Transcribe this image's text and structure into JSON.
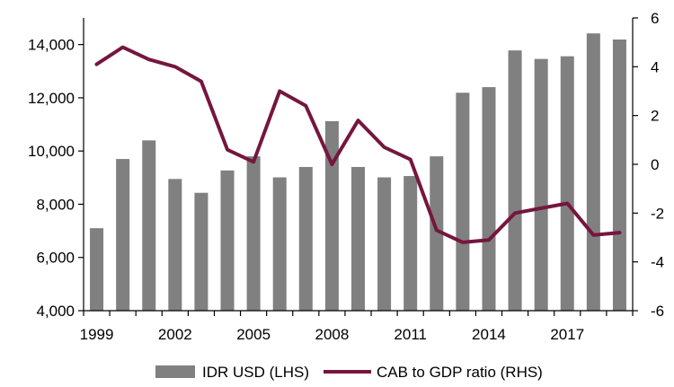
{
  "chart_data": {
    "type": "bar+line",
    "title": "",
    "x": [
      1999,
      2000,
      2001,
      2002,
      2003,
      2004,
      2005,
      2006,
      2007,
      2008,
      2009,
      2010,
      2011,
      2012,
      2013,
      2014,
      2015,
      2016,
      2017,
      2018,
      2019
    ],
    "x_tick_labels": [
      "1999",
      "2002",
      "2005",
      "2008",
      "2011",
      "2014",
      "2017"
    ],
    "y_left": {
      "ylim": [
        4000,
        15000
      ],
      "ticks": [
        "4,000",
        "6,000",
        "8,000",
        "10,000",
        "12,000",
        "14,000"
      ]
    },
    "y_right": {
      "ylim": [
        -6,
        6
      ],
      "ticks": [
        "-6",
        "-4",
        "-2",
        "0",
        "2",
        "4",
        "6"
      ]
    },
    "series": [
      {
        "name": "IDR USD (LHS)",
        "type": "bar",
        "axis": "left",
        "color": "#808080",
        "values": [
          7100,
          9700,
          10400,
          8950,
          8430,
          9270,
          9800,
          9010,
          9400,
          11120,
          9400,
          9010,
          9060,
          9800,
          12190,
          12400,
          13780,
          13460,
          13560,
          14420,
          14190
        ]
      },
      {
        "name": "CAB to GDP ratio (RHS)",
        "type": "line",
        "axis": "right",
        "color": "#75163F",
        "values": [
          4.1,
          4.8,
          4.3,
          4.0,
          3.4,
          0.6,
          0.1,
          3.0,
          2.4,
          0.0,
          1.8,
          0.7,
          0.2,
          -2.7,
          -3.2,
          -3.1,
          -2.0,
          -1.8,
          -1.6,
          -2.9,
          -2.8
        ]
      }
    ],
    "legend": {
      "placement": "bottom"
    }
  }
}
